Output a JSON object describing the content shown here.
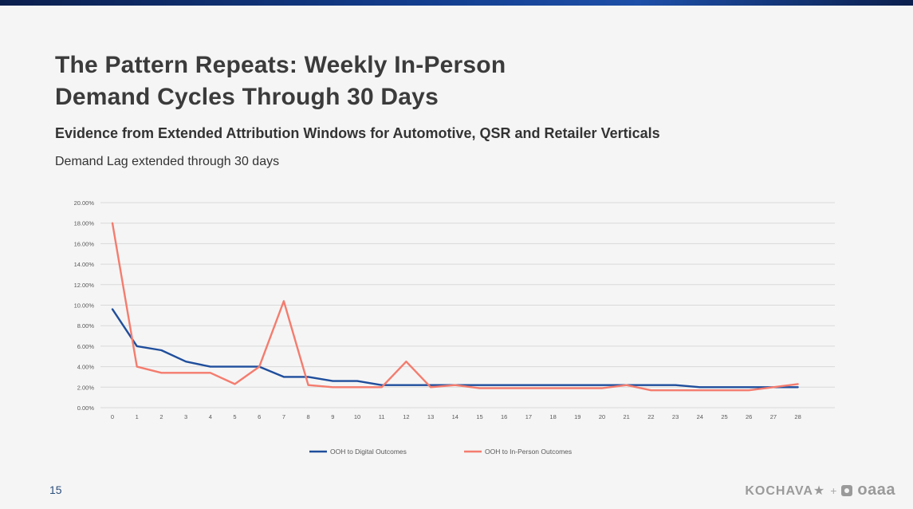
{
  "slide": {
    "title_line1": "The Pattern Repeats: Weekly In-Person",
    "title_line2": "Demand Cycles Through 30 Days",
    "subtitle": "Evidence from Extended Attribution Windows for Automotive, QSR and Retailer Verticals",
    "caption": "Demand Lag extended through 30 days",
    "page_number": "15",
    "brand_kochava": "KOCHAVA★",
    "brand_plus": "+",
    "brand_oaaa": "oaaa"
  },
  "colors": {
    "top_bar": "#123c8c",
    "series_digital": "#1f4e9c",
    "series_inperson": "#f47c6e",
    "grid": "#d9d9d9"
  },
  "chart_data": {
    "type": "line",
    "title": "",
    "xlabel": "",
    "ylabel": "",
    "x": [
      0,
      1,
      2,
      3,
      4,
      5,
      6,
      7,
      8,
      9,
      10,
      11,
      12,
      13,
      14,
      15,
      16,
      17,
      18,
      19,
      20,
      21,
      22,
      23,
      24,
      25,
      26,
      27,
      28
    ],
    "ylim": [
      0,
      20
    ],
    "y_ticks": [
      "0.00%",
      "2.00%",
      "4.00%",
      "6.00%",
      "8.00%",
      "10.00%",
      "12.00%",
      "14.00%",
      "16.00%",
      "18.00%",
      "20.00%"
    ],
    "grid": true,
    "legend_position": "bottom",
    "series": [
      {
        "name": "OOH to Digital Outcomes",
        "color": "#1f4e9c",
        "values": [
          9.6,
          6.0,
          5.6,
          4.5,
          4.0,
          4.0,
          4.0,
          3.0,
          3.0,
          2.6,
          2.6,
          2.2,
          2.2,
          2.2,
          2.2,
          2.2,
          2.2,
          2.2,
          2.2,
          2.2,
          2.2,
          2.2,
          2.2,
          2.2,
          2.0,
          2.0,
          2.0,
          2.0,
          2.0
        ]
      },
      {
        "name": "OOH to In-Person Outcomes",
        "color": "#f47c6e",
        "values": [
          18.0,
          4.0,
          3.4,
          3.4,
          3.4,
          2.3,
          4.0,
          10.4,
          2.2,
          2.0,
          2.0,
          2.0,
          4.5,
          2.0,
          2.2,
          1.9,
          1.9,
          1.9,
          1.9,
          1.9,
          1.9,
          2.2,
          1.7,
          1.7,
          1.7,
          1.7,
          1.7,
          2.0,
          2.3
        ]
      }
    ]
  }
}
